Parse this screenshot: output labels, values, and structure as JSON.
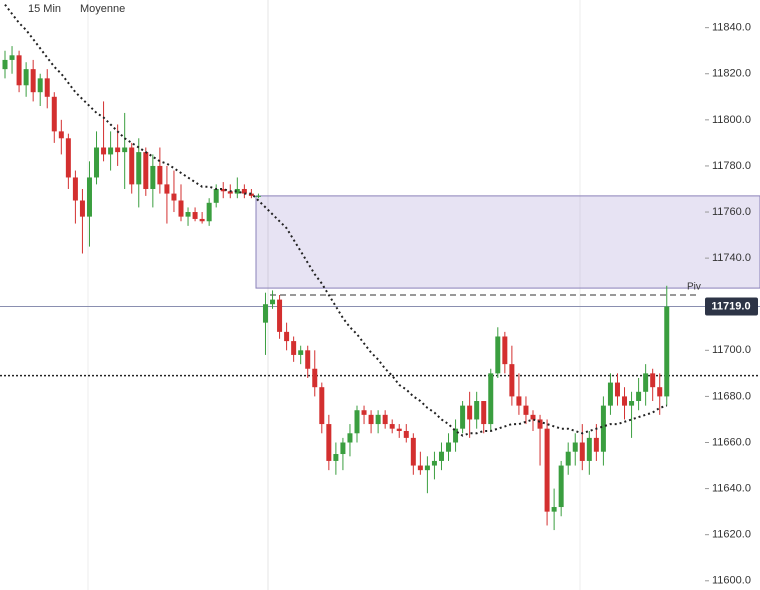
{
  "chart_data": {
    "type": "candlestick",
    "timeframe": "15 Min",
    "ma_name": "Moyenne",
    "up_color": "#3a9e3f",
    "down_color": "#d32f2f",
    "ma_color": "#222222",
    "ylim": [
      11596,
      11852
    ],
    "yticks": [
      {
        "value": 11600,
        "label": "11600.0"
      },
      {
        "value": 11620,
        "label": "11620.0"
      },
      {
        "value": 11640,
        "label": "11640.0"
      },
      {
        "value": 11660,
        "label": "11660.0"
      },
      {
        "value": 11680,
        "label": "11680.0"
      },
      {
        "value": 11700,
        "label": "11700.0"
      },
      {
        "value": 11720,
        "label": "11720.0"
      },
      {
        "value": 11740,
        "label": "11740.0"
      },
      {
        "value": 11760,
        "label": "11760.0"
      },
      {
        "value": 11780,
        "label": "11780.0"
      },
      {
        "value": 11800,
        "label": "11800.0"
      },
      {
        "value": 11820,
        "label": "11820.0"
      },
      {
        "value": 11840,
        "label": "11840.0"
      }
    ],
    "price_line": {
      "value": 11719,
      "label": "11719.0"
    },
    "pivot_line": {
      "value": 11724,
      "label": "Piv"
    },
    "dotted_level": 11689,
    "zone": [
      11727,
      11767
    ],
    "open": [
      11822,
      11826,
      11828,
      11815,
      11822,
      11812,
      11818,
      11810,
      11795,
      11792,
      11775,
      11765,
      11758,
      11775,
      11788,
      11785,
      11788,
      11786,
      11788,
      11772,
      11786,
      11770,
      11780,
      11772,
      11768,
      11765,
      11758,
      11760,
      11757,
      11756,
      11764,
      11770,
      11769,
      11768,
      11770,
      11768,
      11767,
      11712,
      11720,
      11722,
      11708,
      11704,
      11698,
      11700,
      11692,
      11684,
      11668,
      11652,
      11655,
      11660,
      11664,
      11674,
      11672,
      11668,
      11672,
      11668,
      11666,
      11665,
      11662,
      11650,
      11648,
      11650,
      11652,
      11656,
      11660,
      11666,
      11676,
      11670,
      11678,
      11668,
      11690,
      11706,
      11694,
      11680,
      11676,
      11672,
      11670,
      11666,
      11630,
      11632,
      11650,
      11656,
      11660,
      11652,
      11662,
      11656,
      11676,
      11686,
      11680,
      11676,
      11678,
      11682,
      11690,
      11684,
      11680
    ],
    "high": [
      11830,
      11832,
      11830,
      11825,
      11826,
      11820,
      11822,
      11812,
      11800,
      11794,
      11778,
      11770,
      11782,
      11795,
      11808,
      11795,
      11798,
      11803,
      11790,
      11792,
      11788,
      11785,
      11788,
      11780,
      11778,
      11772,
      11762,
      11762,
      11760,
      11766,
      11772,
      11773,
      11772,
      11775,
      11772,
      11770,
      11768,
      11725,
      11726,
      11724,
      11712,
      11706,
      11702,
      11702,
      11700,
      11686,
      11672,
      11660,
      11662,
      11668,
      11676,
      11676,
      11674,
      11674,
      11674,
      11670,
      11668,
      11668,
      11664,
      11656,
      11654,
      11656,
      11660,
      11664,
      11670,
      11678,
      11682,
      11682,
      11678,
      11692,
      11710,
      11708,
      11702,
      11690,
      11680,
      11674,
      11672,
      11670,
      11640,
      11652,
      11660,
      11664,
      11668,
      11665,
      11668,
      11680,
      11690,
      11690,
      11684,
      11682,
      11688,
      11694,
      11692,
      11690,
      11728
    ],
    "low": [
      11818,
      11820,
      11812,
      11810,
      11808,
      11806,
      11805,
      11790,
      11785,
      11770,
      11755,
      11742,
      11745,
      11772,
      11782,
      11778,
      11780,
      11770,
      11768,
      11762,
      11767,
      11762,
      11768,
      11755,
      11760,
      11756,
      11754,
      11756,
      11755,
      11754,
      11762,
      11766,
      11766,
      11766,
      11766,
      11766,
      11766,
      11698,
      11718,
      11705,
      11700,
      11695,
      11694,
      11688,
      11680,
      11664,
      11648,
      11646,
      11648,
      11654,
      11660,
      11668,
      11664,
      11664,
      11666,
      11664,
      11662,
      11660,
      11646,
      11646,
      11638,
      11644,
      11648,
      11652,
      11656,
      11664,
      11662,
      11666,
      11664,
      11665,
      11688,
      11690,
      11676,
      11672,
      11668,
      11665,
      11650,
      11624,
      11622,
      11628,
      11646,
      11650,
      11648,
      11646,
      11652,
      11650,
      11672,
      11676,
      11670,
      11662,
      11674,
      11676,
      11678,
      11672,
      11676
    ],
    "close": [
      11826,
      11828,
      11815,
      11822,
      11812,
      11818,
      11810,
      11795,
      11792,
      11775,
      11765,
      11758,
      11775,
      11788,
      11785,
      11788,
      11786,
      11788,
      11772,
      11786,
      11770,
      11780,
      11772,
      11768,
      11765,
      11758,
      11760,
      11757,
      11756,
      11764,
      11770,
      11769,
      11768,
      11770,
      11768,
      11767,
      11767,
      11720,
      11722,
      11708,
      11704,
      11698,
      11700,
      11692,
      11684,
      11668,
      11652,
      11655,
      11660,
      11664,
      11674,
      11672,
      11668,
      11672,
      11668,
      11666,
      11665,
      11662,
      11650,
      11648,
      11650,
      11652,
      11656,
      11660,
      11666,
      11676,
      11670,
      11678,
      11668,
      11690,
      11706,
      11694,
      11680,
      11676,
      11672,
      11670,
      11666,
      11630,
      11632,
      11650,
      11656,
      11660,
      11652,
      11662,
      11656,
      11676,
      11686,
      11680,
      11676,
      11678,
      11682,
      11690,
      11684,
      11680,
      11719
    ],
    "ma": [
      11850,
      11846,
      11842,
      11839,
      11835,
      11831,
      11827,
      11823,
      11820,
      11816,
      11812,
      11809,
      11806,
      11803,
      11801,
      11798,
      11795,
      11792,
      11790,
      11788,
      11786,
      11784,
      11782,
      11781,
      11779,
      11777,
      11775,
      11773,
      11771,
      11771,
      11770,
      11770,
      11769,
      11769,
      11768,
      11768,
      11765,
      11762,
      11759,
      11756,
      11753,
      11748,
      11743,
      11738,
      11733,
      11729,
      11724,
      11719,
      11714,
      11710,
      11707,
      11703,
      11699,
      11696,
      11692,
      11689,
      11685,
      11683,
      11680,
      11678,
      11675,
      11673,
      11670,
      11668,
      11665,
      11663,
      11664,
      11664,
      11665,
      11665,
      11666,
      11667,
      11668,
      11668,
      11669,
      11670,
      11669,
      11668,
      11667,
      11666,
      11666,
      11665,
      11664,
      11665,
      11666,
      11667,
      11668,
      11668,
      11669,
      11670,
      11671,
      11672,
      11673,
      11675,
      11676
    ]
  }
}
